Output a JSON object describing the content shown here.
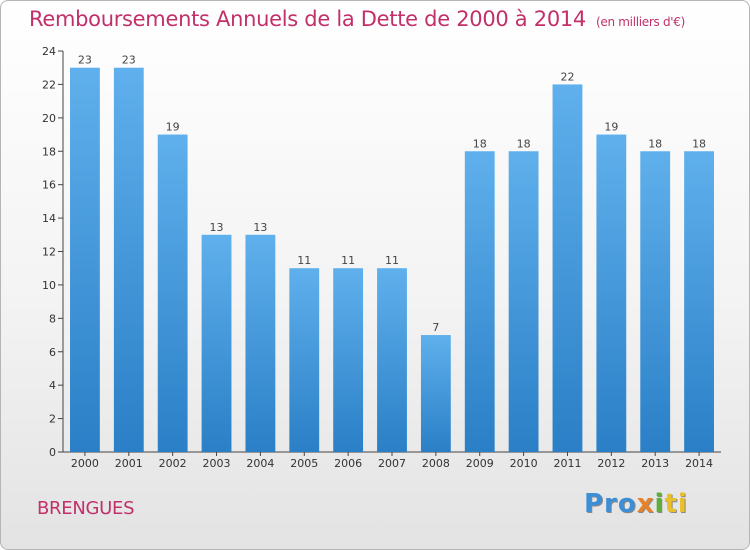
{
  "header": {
    "title": "Remboursements Annuels de la Dette de 2000 à 2014",
    "unit": "(en milliers d'€)"
  },
  "footer": {
    "commune": "BRENGUES",
    "logo": {
      "p1": "Pro",
      "p2": "x",
      "p3": "i",
      "p4": "ti"
    }
  },
  "colors": {
    "title": "#c2306a",
    "bar_top": "#5fb0ec",
    "bar_bottom": "#2a7fc6"
  },
  "chart_data": {
    "type": "bar",
    "categories": [
      "2000",
      "2001",
      "2002",
      "2003",
      "2004",
      "2005",
      "2006",
      "2007",
      "2008",
      "2009",
      "2010",
      "2011",
      "2012",
      "2013",
      "2014"
    ],
    "values": [
      23,
      23,
      19,
      13,
      13,
      11,
      11,
      11,
      7,
      18,
      18,
      22,
      19,
      18,
      18
    ],
    "title": "Remboursements Annuels de la Dette de 2000 à 2014",
    "xlabel": "",
    "ylabel": "",
    "ylim": [
      0,
      24
    ],
    "yticks": [
      0,
      2,
      4,
      6,
      8,
      10,
      12,
      14,
      16,
      18,
      20,
      22,
      24
    ],
    "grid": false,
    "legend": "none"
  }
}
